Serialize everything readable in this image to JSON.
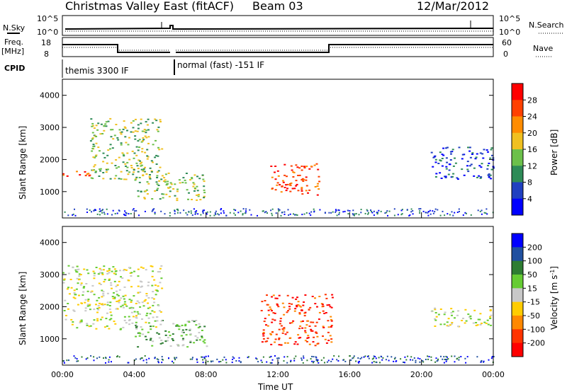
{
  "header": {
    "title": "Christmas Valley East (fitACF)",
    "beam": "Beam 03",
    "date": "12/Mar/2012"
  },
  "status_panels": {
    "nsky_label": "N.Sky",
    "nsearch_label": "N.Search",
    "noise_ticks": [
      "10^5",
      "10^0"
    ],
    "freq_label": "Freq.",
    "freq_unit": "[MHz]",
    "freq_ticks": [
      "18",
      "8"
    ],
    "nave_label": "Nave",
    "nave_ticks": [
      "60",
      "0"
    ],
    "cpid_label": "CPID",
    "cpid_modes": [
      "themis 3300 IF",
      "normal (fast) -151 IF"
    ]
  },
  "colors": {
    "power_scale": [
      "#0000ff",
      "#2040c0",
      "#2e8b57",
      "#6cc04a",
      "#f0c020",
      "#ff8c00",
      "#ff4000",
      "#ff0000"
    ],
    "velocity_scale": [
      "#0000ff",
      "#2050a0",
      "#2e7d32",
      "#66cc33",
      "#c8c8c8",
      "#ffcc00",
      "#ff8800",
      "#ff3300",
      "#ff0000"
    ]
  },
  "chart_data": [
    {
      "type": "heatmap",
      "name": "power",
      "xlabel": "",
      "ylabel": "Slant Range [km]",
      "x_range": [
        0,
        24
      ],
      "y_range": [
        180,
        4500
      ],
      "y_ticks": [
        "1000",
        "2000",
        "3000",
        "4000"
      ],
      "colorbar_label": "Power [dB]",
      "colorbar_ticks": [
        "28",
        "24",
        "20",
        "16",
        "12",
        "8",
        "4"
      ],
      "features": [
        {
          "t_start": 0.0,
          "t_end": 1.5,
          "range_start": 1500,
          "range_end": 1750,
          "level": 6
        },
        {
          "t_start": 1.5,
          "t_end": 5.5,
          "range_start": 1400,
          "range_end": 3300,
          "level": 3
        },
        {
          "t_start": 4.0,
          "t_end": 8.0,
          "range_start": 750,
          "range_end": 1600,
          "level": 3
        },
        {
          "t_start": 11.5,
          "t_end": 14.3,
          "range_start": 900,
          "range_end": 1900,
          "level": 6
        },
        {
          "t_start": 20.5,
          "t_end": 24.0,
          "range_start": 1400,
          "range_end": 2400,
          "level": 1
        }
      ]
    },
    {
      "type": "heatmap",
      "name": "velocity",
      "xlabel": "Time UT",
      "ylabel": "Slant Range [km]",
      "x_range": [
        0,
        24
      ],
      "x_ticks": [
        "00:00",
        "04:00",
        "08:00",
        "12:00",
        "16:00",
        "20:00",
        "00:00"
      ],
      "y_range": [
        180,
        4500
      ],
      "y_ticks": [
        "1000",
        "2000",
        "3000",
        "4000"
      ],
      "colorbar_label": "Velocity [m s^-1]",
      "colorbar_ticks": [
        "200",
        "100",
        "50",
        "15",
        "-15",
        "-50",
        "-100",
        "-200"
      ],
      "features": [
        {
          "t_start": 0.0,
          "t_end": 5.5,
          "range_start": 1300,
          "range_end": 3300,
          "level": 4
        },
        {
          "t_start": 4.0,
          "t_end": 8.0,
          "range_start": 750,
          "range_end": 1600,
          "level": 3
        },
        {
          "t_start": 11.0,
          "t_end": 15.0,
          "range_start": 800,
          "range_end": 2400,
          "level": 7
        },
        {
          "t_start": 20.5,
          "t_end": 24.0,
          "range_start": 1400,
          "range_end": 2000,
          "level": 4
        }
      ]
    }
  ]
}
